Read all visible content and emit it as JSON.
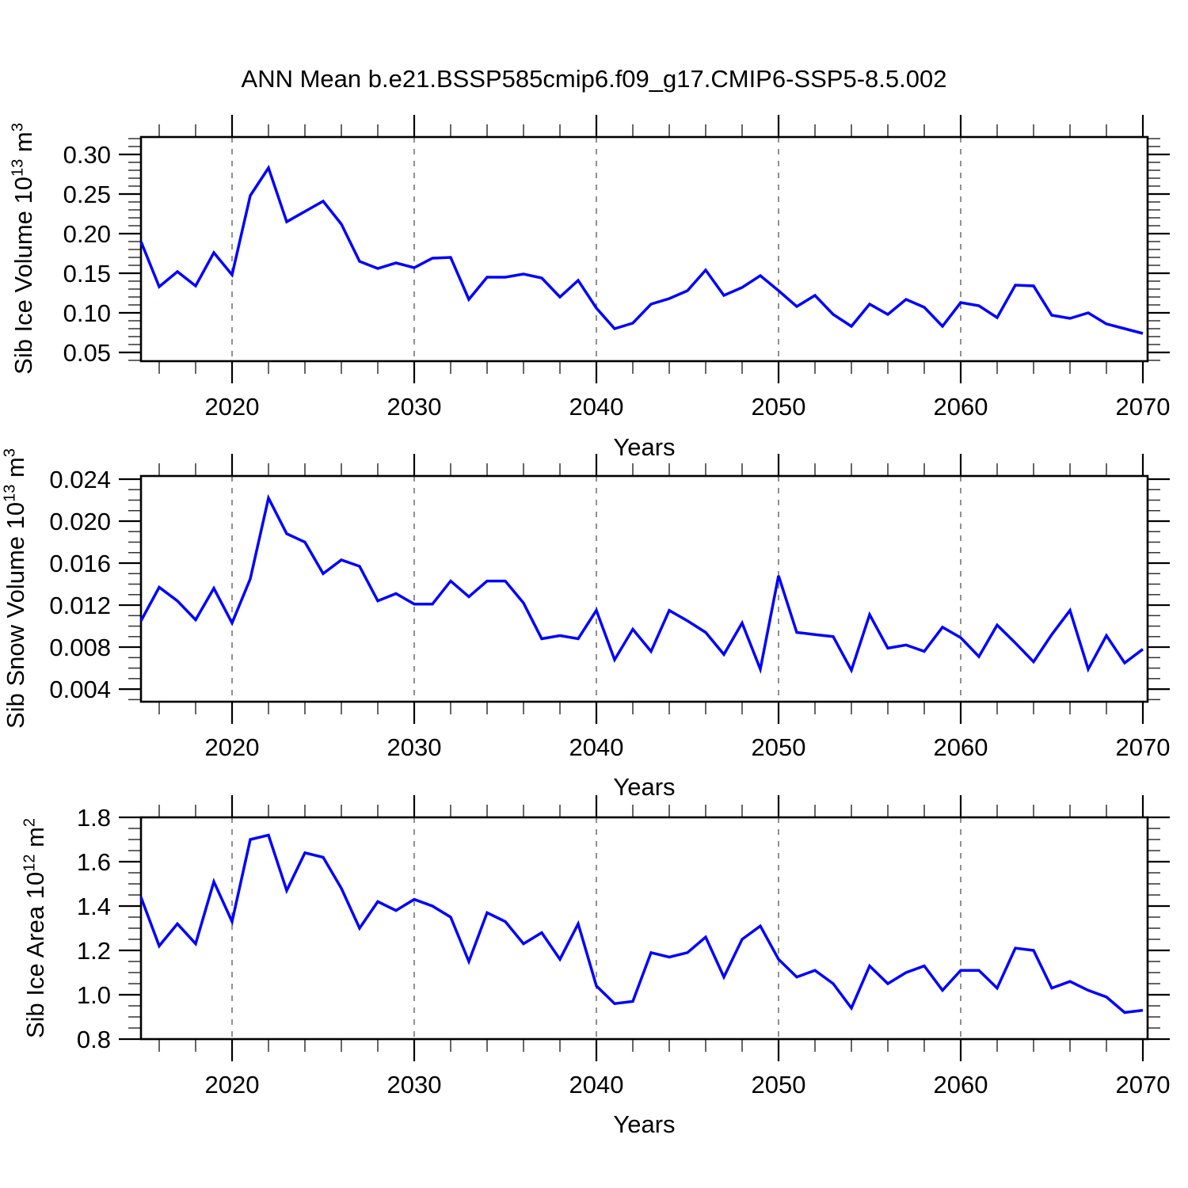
{
  "title": "ANN Mean b.e21.BSSP585cmip6.f09_g17.CMIP6-SSP5-8.5.002",
  "colors": {
    "line": "#0000ff",
    "grid": "#909090",
    "frame": "#000000",
    "minor_tick": "#333333",
    "text": "#000000"
  },
  "chart_data": [
    {
      "type": "line",
      "id": "sib-ice-volume",
      "ylabel": "Sib Ice Volume 10^13 m^3",
      "ylabel_text": "Sib Ice Volume 10",
      "ylabel_exp": "13",
      "ylabel_unit": " m",
      "ylabel_unit_exp": "3",
      "xlabel": "Years",
      "xlim": [
        2015,
        2070.26
      ],
      "ylim": [
        0.039,
        0.322
      ],
      "xticks": [
        2020,
        2030,
        2040,
        2050,
        2060,
        2070
      ],
      "xtick_labels": [
        "2020",
        "2030",
        "2040",
        "2050",
        "2060",
        "2070"
      ],
      "xminor_start": 2016,
      "xminor_step": 2,
      "grid_x": [
        2020,
        2030,
        2040,
        2050,
        2060
      ],
      "yticks": [
        0.05,
        0.1,
        0.15,
        0.2,
        0.25,
        0.3
      ],
      "ytick_labels": [
        "0.05",
        "0.10",
        "0.15",
        "0.20",
        "0.25",
        "0.30"
      ],
      "yminor_step": 0.01,
      "x": [
        2015,
        2016,
        2017,
        2018,
        2019,
        2020,
        2021,
        2022,
        2023,
        2024,
        2025,
        2026,
        2027,
        2028,
        2029,
        2030,
        2031,
        2032,
        2033,
        2034,
        2035,
        2036,
        2037,
        2038,
        2039,
        2040,
        2041,
        2042,
        2043,
        2044,
        2045,
        2046,
        2047,
        2048,
        2049,
        2050,
        2051,
        2052,
        2053,
        2054,
        2055,
        2056,
        2057,
        2058,
        2059,
        2060,
        2061,
        2062,
        2063,
        2064,
        2065,
        2066,
        2067,
        2068,
        2069,
        2070
      ],
      "values": [
        0.19,
        0.133,
        0.152,
        0.134,
        0.176,
        0.148,
        0.248,
        0.283,
        0.215,
        0.228,
        0.241,
        0.212,
        0.165,
        0.156,
        0.163,
        0.157,
        0.169,
        0.17,
        0.117,
        0.145,
        0.145,
        0.149,
        0.144,
        0.12,
        0.141,
        0.106,
        0.08,
        0.087,
        0.111,
        0.118,
        0.128,
        0.154,
        0.122,
        0.132,
        0.147,
        0.128,
        0.108,
        0.122,
        0.098,
        0.083,
        0.111,
        0.098,
        0.117,
        0.107,
        0.083,
        0.113,
        0.109,
        0.094,
        0.135,
        0.134,
        0.097,
        0.093,
        0.1,
        0.086,
        0.08,
        0.074
      ]
    },
    {
      "type": "line",
      "id": "sib-snow-volume",
      "ylabel": "Sib Snow Volume 10^13 m^3",
      "ylabel_text": "Sib Snow Volume 10",
      "ylabel_exp": "13",
      "ylabel_unit": " m",
      "ylabel_unit_exp": "3",
      "xlabel": "Years",
      "xlim": [
        2015,
        2070.26
      ],
      "ylim": [
        0.0028,
        0.0243
      ],
      "xticks": [
        2020,
        2030,
        2040,
        2050,
        2060,
        2070
      ],
      "xtick_labels": [
        "2020",
        "2030",
        "2040",
        "2050",
        "2060",
        "2070"
      ],
      "xminor_start": 2016,
      "xminor_step": 2,
      "grid_x": [
        2020,
        2030,
        2040,
        2050,
        2060
      ],
      "yticks": [
        0.004,
        0.008,
        0.012,
        0.016,
        0.02,
        0.024
      ],
      "ytick_labels": [
        "0.004",
        "0.008",
        "0.012",
        "0.016",
        "0.020",
        "0.024"
      ],
      "yminor_step": 0.001,
      "x": [
        2015,
        2016,
        2017,
        2018,
        2019,
        2020,
        2021,
        2022,
        2023,
        2024,
        2025,
        2026,
        2027,
        2028,
        2029,
        2030,
        2031,
        2032,
        2033,
        2034,
        2035,
        2036,
        2037,
        2038,
        2039,
        2040,
        2041,
        2042,
        2043,
        2044,
        2045,
        2046,
        2047,
        2048,
        2049,
        2050,
        2051,
        2052,
        2053,
        2054,
        2055,
        2056,
        2057,
        2058,
        2059,
        2060,
        2061,
        2062,
        2063,
        2064,
        2065,
        2066,
        2067,
        2068,
        2069,
        2070
      ],
      "values": [
        0.0105,
        0.0137,
        0.0124,
        0.0106,
        0.0136,
        0.0103,
        0.0145,
        0.0222,
        0.0188,
        0.018,
        0.015,
        0.0163,
        0.0157,
        0.0124,
        0.0131,
        0.0121,
        0.0121,
        0.0143,
        0.0128,
        0.0143,
        0.0143,
        0.0122,
        0.0088,
        0.0091,
        0.0088,
        0.0115,
        0.0068,
        0.0097,
        0.0076,
        0.0115,
        0.0105,
        0.0094,
        0.0073,
        0.0103,
        0.0059,
        0.0148,
        0.0094,
        0.0092,
        0.009,
        0.0058,
        0.0111,
        0.0079,
        0.0082,
        0.0076,
        0.0099,
        0.0089,
        0.0071,
        0.0101,
        0.0084,
        0.0066,
        0.0092,
        0.0115,
        0.0059,
        0.0091,
        0.0065,
        0.0078
      ]
    },
    {
      "type": "line",
      "id": "sib-ice-area",
      "ylabel": "Sib Ice Area 10^12 m^2",
      "ylabel_text": "Sib Ice Area 10",
      "ylabel_exp": "12",
      "ylabel_unit": " m",
      "ylabel_unit_exp": "2",
      "xlabel": "Years",
      "xlim": [
        2015,
        2070.26
      ],
      "ylim": [
        0.8,
        1.8
      ],
      "xticks": [
        2020,
        2030,
        2040,
        2050,
        2060,
        2070
      ],
      "xtick_labels": [
        "2020",
        "2030",
        "2040",
        "2050",
        "2060",
        "2070"
      ],
      "xminor_start": 2016,
      "xminor_step": 2,
      "grid_x": [
        2020,
        2030,
        2040,
        2050,
        2060
      ],
      "yticks": [
        0.8,
        1.0,
        1.2,
        1.4,
        1.6,
        1.8
      ],
      "ytick_labels": [
        "0.8",
        "1.0",
        "1.2",
        "1.4",
        "1.6",
        "1.8"
      ],
      "yminor_step": 0.05,
      "x": [
        2015,
        2016,
        2017,
        2018,
        2019,
        2020,
        2021,
        2022,
        2023,
        2024,
        2025,
        2026,
        2027,
        2028,
        2029,
        2030,
        2031,
        2032,
        2033,
        2034,
        2035,
        2036,
        2037,
        2038,
        2039,
        2040,
        2041,
        2042,
        2043,
        2044,
        2045,
        2046,
        2047,
        2048,
        2049,
        2050,
        2051,
        2052,
        2053,
        2054,
        2055,
        2056,
        2057,
        2058,
        2059,
        2060,
        2061,
        2062,
        2063,
        2064,
        2065,
        2066,
        2067,
        2068,
        2069,
        2070
      ],
      "values": [
        1.44,
        1.22,
        1.32,
        1.23,
        1.51,
        1.33,
        1.7,
        1.72,
        1.47,
        1.64,
        1.62,
        1.48,
        1.3,
        1.42,
        1.38,
        1.43,
        1.4,
        1.35,
        1.15,
        1.37,
        1.33,
        1.23,
        1.28,
        1.16,
        1.32,
        1.04,
        0.96,
        0.97,
        1.19,
        1.17,
        1.19,
        1.26,
        1.08,
        1.25,
        1.31,
        1.16,
        1.08,
        1.11,
        1.05,
        0.94,
        1.13,
        1.05,
        1.1,
        1.13,
        1.02,
        1.11,
        1.11,
        1.03,
        1.21,
        1.2,
        1.03,
        1.06,
        1.02,
        0.99,
        0.92,
        0.93
      ]
    }
  ]
}
